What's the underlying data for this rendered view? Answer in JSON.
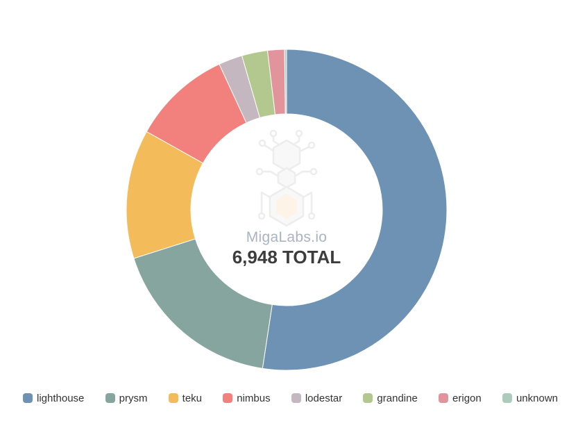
{
  "center": {
    "brand": "MigaLabs.io",
    "total_label": "6,948 TOTAL"
  },
  "chart_data": {
    "type": "pie",
    "subtype": "donut",
    "title": "",
    "total": 6948,
    "center_label": "6,948 TOTAL",
    "watermark_brand": "MigaLabs.io",
    "legend_position": "bottom",
    "start_angle_deg": 0,
    "direction": "clockwise",
    "series": [
      {
        "name": "lighthouse",
        "percent": 52.4,
        "value_est": 3641,
        "color": "#6d92b4"
      },
      {
        "name": "prysm",
        "percent": 17.7,
        "value_est": 1230,
        "color": "#86a59e"
      },
      {
        "name": "teku",
        "percent": 13.0,
        "value_est": 903,
        "color": "#f3bb59"
      },
      {
        "name": "nimbus",
        "percent": 10.0,
        "value_est": 695,
        "color": "#f2807d"
      },
      {
        "name": "lodestar",
        "percent": 2.4,
        "value_est": 167,
        "color": "#c4b7c0"
      },
      {
        "name": "grandine",
        "percent": 2.6,
        "value_est": 181,
        "color": "#b2c88f"
      },
      {
        "name": "erigon",
        "percent": 1.7,
        "value_est": 118,
        "color": "#e2949c"
      },
      {
        "name": "unknown",
        "percent": 0.2,
        "value_est": 13,
        "color": "#abcbbd"
      }
    ]
  }
}
